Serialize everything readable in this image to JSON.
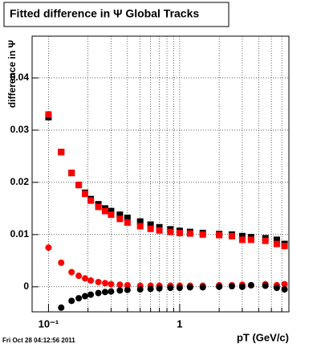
{
  "chart_data": {
    "type": "scatter",
    "title": "Fitted difference in Ψ   Global Tracks",
    "xlabel": "pT (GeV/c)",
    "ylabel": "difference in Ψ",
    "footer": "Fri Oct 28 04:12:56 2011",
    "log_x": true,
    "grid": true,
    "xlim": [
      0.075,
      6.8
    ],
    "ylim": [
      -0.0048,
      0.048
    ],
    "xticks": [
      {
        "value": 0.1,
        "label": "10⁻¹"
      },
      1
    ],
    "xgrid": [
      0.2,
      0.3,
      0.4,
      0.5,
      0.6,
      0.7,
      0.8,
      0.9,
      2,
      3,
      4,
      5,
      6
    ],
    "yticks": [
      0,
      0.01,
      0.02,
      0.03,
      0.04
    ],
    "x": [
      0.1,
      0.125,
      0.15,
      0.17,
      0.19,
      0.21,
      0.24,
      0.27,
      0.3,
      0.35,
      0.4,
      0.5,
      0.6,
      0.7,
      0.85,
      1.0,
      1.2,
      1.5,
      2.0,
      2.5,
      3.0,
      3.5,
      4.5,
      5.5,
      6.3
    ],
    "series": [
      {
        "color": "#000000",
        "marker": "square",
        "values": [
          0.0325,
          0.0258,
          0.0218,
          0.0195,
          0.018,
          0.0168,
          0.0158,
          0.015,
          0.0145,
          0.0138,
          0.0132,
          0.0125,
          0.0119,
          0.0114,
          0.011,
          0.0107,
          0.0105,
          0.0103,
          0.0101,
          0.01,
          0.0097,
          0.0095,
          0.0093,
          0.009,
          0.0082
        ]
      },
      {
        "color": "#ff0000",
        "marker": "square",
        "values": [
          0.033,
          0.0258,
          0.0218,
          0.0195,
          0.0178,
          0.0165,
          0.0153,
          0.0145,
          0.0138,
          0.013,
          0.0123,
          0.0116,
          0.0111,
          0.0108,
          0.0105,
          0.0103,
          0.0102,
          0.01,
          0.0099,
          0.0097,
          0.009,
          0.009,
          0.0088,
          0.0082,
          0.0078
        ]
      },
      {
        "color": "#ff0000",
        "marker": "circle",
        "values": [
          0.0075,
          0.0046,
          0.0028,
          0.0021,
          0.0016,
          0.0012,
          0.0009,
          0.0007,
          0.0005,
          0.0004,
          0.0003,
          0.0002,
          0.0002,
          0.0002,
          0.0002,
          0.0002,
          0.0002,
          0.0002,
          0.0003,
          0.0003,
          0.0004,
          0.0003,
          0.0005,
          0.0003,
          0.0005
        ]
      },
      {
        "color": "#000000",
        "marker": "circle",
        "values": [
          null,
          -0.004,
          -0.0027,
          -0.0022,
          -0.0018,
          -0.0015,
          -0.0012,
          -0.001,
          -0.0009,
          -0.0007,
          -0.0006,
          -0.0005,
          -0.0004,
          -0.0003,
          -0.0002,
          -0.0002,
          -0.0001,
          -0.0001,
          0,
          0.0001,
          0,
          0.0003,
          0.0002,
          -0.0002,
          -0.0005
        ]
      }
    ]
  }
}
